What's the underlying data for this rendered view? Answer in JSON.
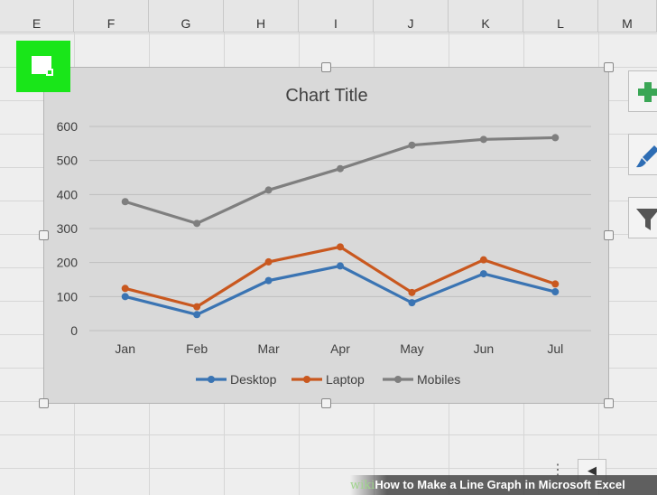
{
  "columns": [
    "E",
    "F",
    "G",
    "H",
    "I",
    "J",
    "K",
    "L",
    "M"
  ],
  "side_buttons": [
    {
      "icon": "plus-icon"
    },
    {
      "icon": "brush-icon"
    },
    {
      "icon": "filter-icon"
    }
  ],
  "banner": {
    "brand": "wiki",
    "text": "How to Make a Line Graph in Microsoft Excel"
  },
  "tab_nav": {
    "label": "◀",
    "more": "⋮"
  },
  "colors": {
    "grid": "#c0c0c0",
    "chart_bg": "#d9d9d9",
    "select": "#19e619"
  },
  "chart_data": {
    "type": "line",
    "title": "Chart Title",
    "categories": [
      "Jan",
      "Feb",
      "Mar",
      "Apr",
      "May",
      "Jun",
      "Jul"
    ],
    "series": [
      {
        "name": "Desktop",
        "color": "#3a74b3",
        "values": [
          100,
          47,
          147,
          190,
          82,
          167,
          114
        ]
      },
      {
        "name": "Laptop",
        "color": "#c9581f",
        "values": [
          124,
          70,
          202,
          246,
          112,
          208,
          137
        ]
      },
      {
        "name": "Mobiles",
        "color": "#7f7f7f",
        "values": [
          379,
          315,
          413,
          476,
          545,
          562,
          567
        ]
      }
    ],
    "ylim": [
      0,
      600
    ],
    "yticks": [
      0,
      100,
      200,
      300,
      400,
      500,
      600
    ],
    "grid": true,
    "legend": "bottom"
  }
}
